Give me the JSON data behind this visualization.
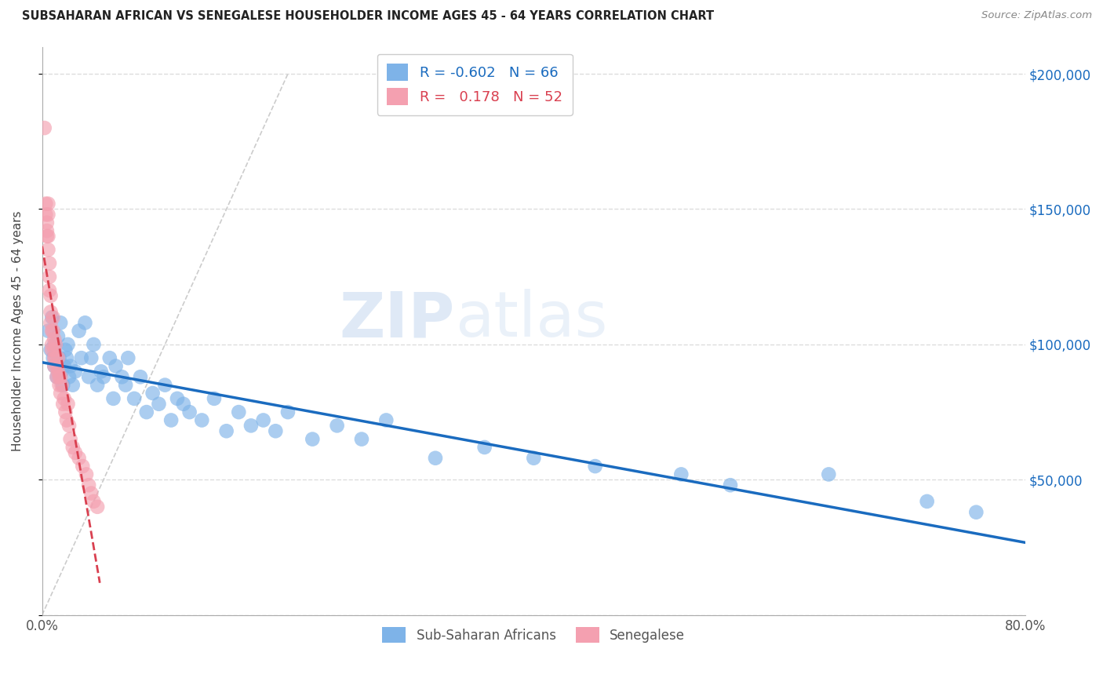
{
  "title": "SUBSAHARAN AFRICAN VS SENEGALESE HOUSEHOLDER INCOME AGES 45 - 64 YEARS CORRELATION CHART",
  "source": "Source: ZipAtlas.com",
  "ylabel": "Householder Income Ages 45 - 64 years",
  "xlim": [
    0.0,
    0.8
  ],
  "ylim": [
    0,
    210000
  ],
  "yticks": [
    0,
    50000,
    100000,
    150000,
    200000
  ],
  "ytick_labels": [
    "",
    "$50,000",
    "$100,000",
    "$150,000",
    "$200,000"
  ],
  "xticks": [
    0.0,
    0.1,
    0.2,
    0.3,
    0.4,
    0.5,
    0.6,
    0.7,
    0.8
  ],
  "xtick_labels": [
    "0.0%",
    "",
    "",
    "",
    "",
    "",
    "",
    "",
    "80.0%"
  ],
  "blue_color": "#7eb3e8",
  "pink_color": "#f4a0b0",
  "blue_line_color": "#1a6bbf",
  "pink_line_color": "#d94050",
  "legend_label_blue": "Sub-Saharan Africans",
  "legend_label_pink": "Senegalese",
  "watermark_zip": "ZIP",
  "watermark_atlas": "atlas",
  "blue_R": -0.602,
  "blue_N": 66,
  "pink_R": 0.178,
  "pink_N": 52,
  "blue_scatter_x": [
    0.005,
    0.007,
    0.008,
    0.009,
    0.01,
    0.01,
    0.012,
    0.013,
    0.014,
    0.015,
    0.016,
    0.017,
    0.018,
    0.019,
    0.02,
    0.021,
    0.022,
    0.023,
    0.025,
    0.027,
    0.03,
    0.032,
    0.035,
    0.038,
    0.04,
    0.042,
    0.045,
    0.048,
    0.05,
    0.055,
    0.058,
    0.06,
    0.065,
    0.068,
    0.07,
    0.075,
    0.08,
    0.085,
    0.09,
    0.095,
    0.1,
    0.105,
    0.11,
    0.115,
    0.12,
    0.13,
    0.14,
    0.15,
    0.16,
    0.17,
    0.18,
    0.19,
    0.2,
    0.22,
    0.24,
    0.26,
    0.28,
    0.32,
    0.36,
    0.4,
    0.45,
    0.52,
    0.56,
    0.64,
    0.72,
    0.76
  ],
  "blue_scatter_y": [
    105000,
    98000,
    110000,
    95000,
    92000,
    100000,
    88000,
    103000,
    95000,
    108000,
    90000,
    85000,
    92000,
    98000,
    95000,
    100000,
    88000,
    92000,
    85000,
    90000,
    105000,
    95000,
    108000,
    88000,
    95000,
    100000,
    85000,
    90000,
    88000,
    95000,
    80000,
    92000,
    88000,
    85000,
    95000,
    80000,
    88000,
    75000,
    82000,
    78000,
    85000,
    72000,
    80000,
    78000,
    75000,
    72000,
    80000,
    68000,
    75000,
    70000,
    72000,
    68000,
    75000,
    65000,
    70000,
    65000,
    72000,
    58000,
    62000,
    58000,
    55000,
    52000,
    48000,
    52000,
    42000,
    38000
  ],
  "pink_scatter_x": [
    0.002,
    0.003,
    0.003,
    0.004,
    0.004,
    0.004,
    0.005,
    0.005,
    0.005,
    0.005,
    0.006,
    0.006,
    0.006,
    0.007,
    0.007,
    0.007,
    0.008,
    0.008,
    0.008,
    0.009,
    0.009,
    0.01,
    0.01,
    0.01,
    0.01,
    0.011,
    0.011,
    0.012,
    0.012,
    0.013,
    0.013,
    0.014,
    0.014,
    0.015,
    0.015,
    0.016,
    0.017,
    0.018,
    0.019,
    0.02,
    0.021,
    0.022,
    0.023,
    0.025,
    0.027,
    0.03,
    0.033,
    0.036,
    0.038,
    0.04,
    0.042,
    0.045
  ],
  "pink_scatter_y": [
    180000,
    152000,
    148000,
    145000,
    140000,
    142000,
    152000,
    148000,
    140000,
    135000,
    130000,
    125000,
    120000,
    118000,
    112000,
    108000,
    105000,
    100000,
    98000,
    110000,
    105000,
    98000,
    95000,
    92000,
    102000,
    100000,
    95000,
    92000,
    88000,
    95000,
    90000,
    88000,
    85000,
    82000,
    88000,
    85000,
    78000,
    80000,
    75000,
    72000,
    78000,
    70000,
    65000,
    62000,
    60000,
    58000,
    55000,
    52000,
    48000,
    45000,
    42000,
    40000
  ],
  "ref_line_x": [
    0.0,
    0.2
  ],
  "ref_line_y": [
    0,
    200000
  ],
  "pink_trend_x_start": 0.0,
  "pink_trend_x_end": 0.047,
  "blue_trend_x_start": 0.0,
  "blue_trend_x_end": 0.8
}
